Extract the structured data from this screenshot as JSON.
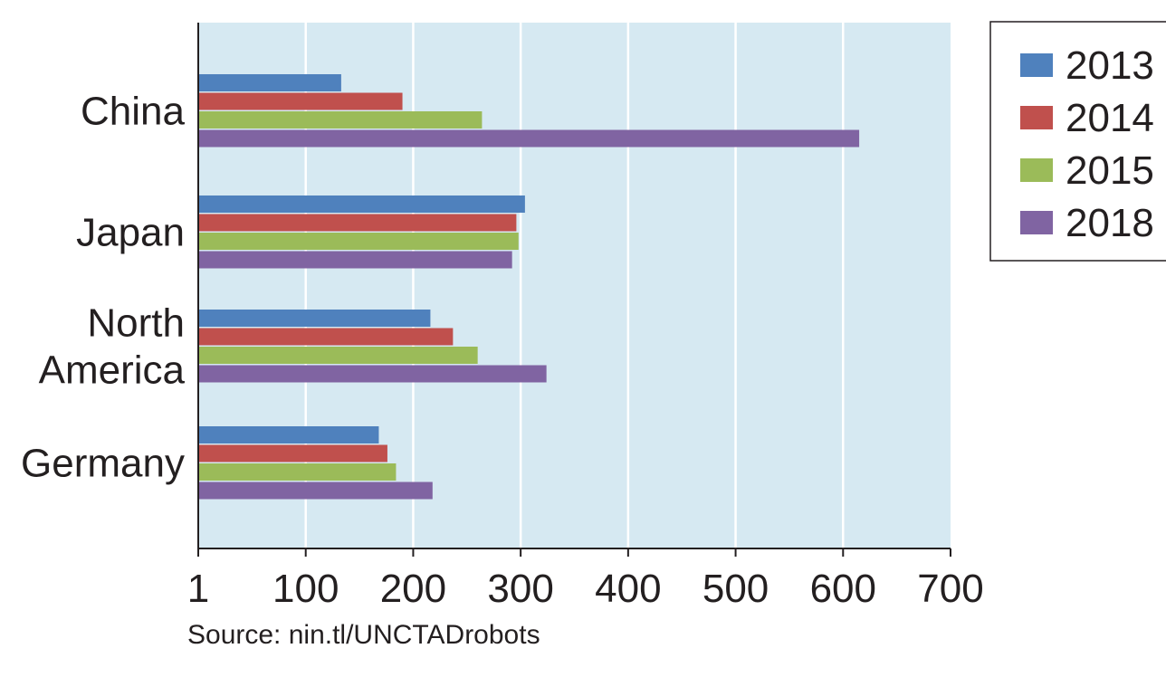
{
  "chart_data": {
    "type": "bar",
    "orientation": "horizontal",
    "categories": [
      "China",
      "Japan",
      "North America",
      "Germany"
    ],
    "category_lines": [
      [
        "China"
      ],
      [
        "Japan"
      ],
      [
        "North",
        "America"
      ],
      [
        "Germany"
      ]
    ],
    "series": [
      {
        "name": "2013",
        "color": "#4f81bd",
        "values": [
          133,
          304,
          216,
          168
        ]
      },
      {
        "name": "2014",
        "color": "#c0504d",
        "values": [
          190,
          296,
          237,
          176
        ]
      },
      {
        "name": "2015",
        "color": "#9bbb59",
        "values": [
          264,
          298,
          260,
          184
        ]
      },
      {
        "name": "2018",
        "color": "#8064a2",
        "values": [
          615,
          292,
          324,
          218
        ]
      }
    ],
    "x_ticks": [
      "1",
      "100",
      "200",
      "300",
      "400",
      "500",
      "600",
      "700"
    ],
    "xlim": [
      0,
      700
    ],
    "grid": true,
    "plot_background": "#d6e9f2",
    "legend_position": "top-right",
    "xlabel": "",
    "ylabel": "",
    "title": ""
  },
  "source_note": "Source: nin.tl/UNCTADrobots"
}
